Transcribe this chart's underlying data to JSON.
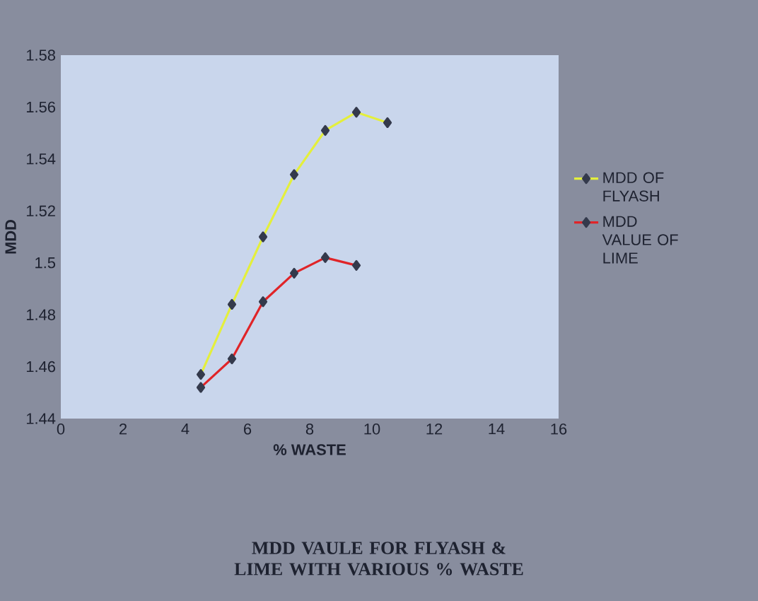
{
  "chart_data": {
    "type": "line",
    "title": "MDD VAULE FOR FLYASH & LIME WITH VARIOUS  % WASTE",
    "xlabel": "% WASTE",
    "ylabel": "MDD",
    "x": [
      4.5,
      5.5,
      6.5,
      7.5,
      8.5,
      9.5,
      10.5
    ],
    "series": [
      {
        "name": "MDD OF FLYASH",
        "color": "#e4ef3c",
        "values": [
          1.457,
          1.484,
          1.51,
          1.534,
          1.551,
          1.558,
          1.554
        ]
      },
      {
        "name": "MDD VALUE OF LIME",
        "color": "#e02428",
        "values": [
          1.452,
          1.463,
          1.485,
          1.496,
          1.502,
          1.499,
          null
        ]
      }
    ],
    "xlim": [
      0,
      16
    ],
    "xticks": [
      0,
      2,
      4,
      6,
      8,
      10,
      12,
      14,
      16
    ],
    "ylim": [
      1.44,
      1.58
    ],
    "yticks": [
      1.44,
      1.46,
      1.48,
      1.5,
      1.52,
      1.54,
      1.56,
      1.58
    ],
    "legend": "right",
    "marker": "diamond",
    "grid": false
  }
}
